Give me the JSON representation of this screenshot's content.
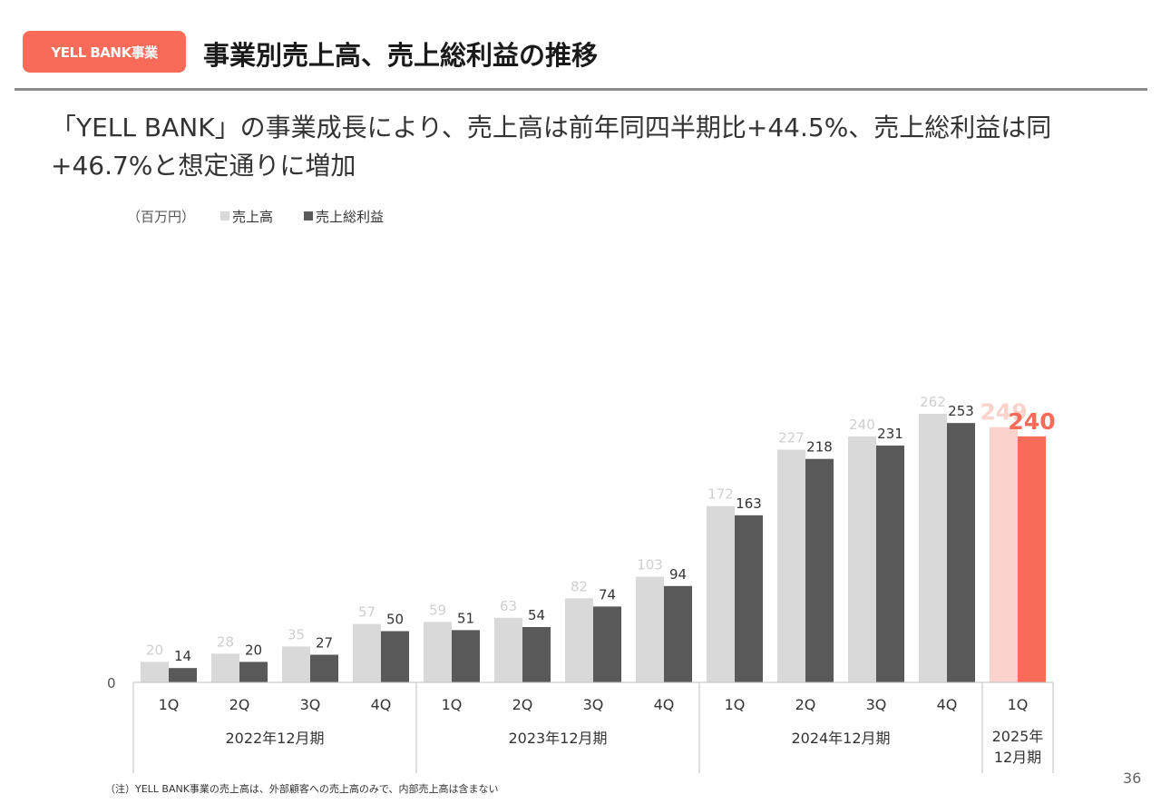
{
  "header": {
    "badge": "YELL BANK事業",
    "title": "事業別売上高、売上総利益の推移"
  },
  "subtitle": "「YELL BANK」の事業成長により、売上高は前年同四半期比+44.5%、売上総利益は同+46.7%と想定通りに増加",
  "footnote": "（注）YELL BANK事業の売上高は、外部顧客への売上高のみで、内部売上高は含まない",
  "page_number": "36",
  "chart_data": {
    "type": "bar",
    "unit": "（百万円）",
    "categories": [
      "1Q",
      "2Q",
      "3Q",
      "4Q",
      "1Q",
      "2Q",
      "3Q",
      "4Q",
      "1Q",
      "2Q",
      "3Q",
      "4Q",
      "1Q"
    ],
    "periods": [
      {
        "label": "2022年12月期",
        "count": 4
      },
      {
        "label": "2023年12月期",
        "count": 4
      },
      {
        "label": "2024年12月期",
        "count": 4
      },
      {
        "label": "2025年\n12月期",
        "count": 1
      }
    ],
    "series": [
      {
        "name": "売上高",
        "values": [
          20,
          28,
          35,
          57,
          59,
          63,
          82,
          103,
          172,
          227,
          240,
          262,
          249
        ],
        "color": "#d9d9d9",
        "highlight_color": "#fbd3cc"
      },
      {
        "name": "売上総利益",
        "values": [
          14,
          20,
          27,
          50,
          51,
          54,
          74,
          94,
          163,
          218,
          231,
          253,
          240
        ],
        "color": "#595959",
        "highlight_color": "#f86b58"
      }
    ],
    "y_axis_label": "0",
    "ylim": [
      0,
      262
    ],
    "highlight_last": true,
    "grid": false,
    "legend_position": "top-left"
  }
}
